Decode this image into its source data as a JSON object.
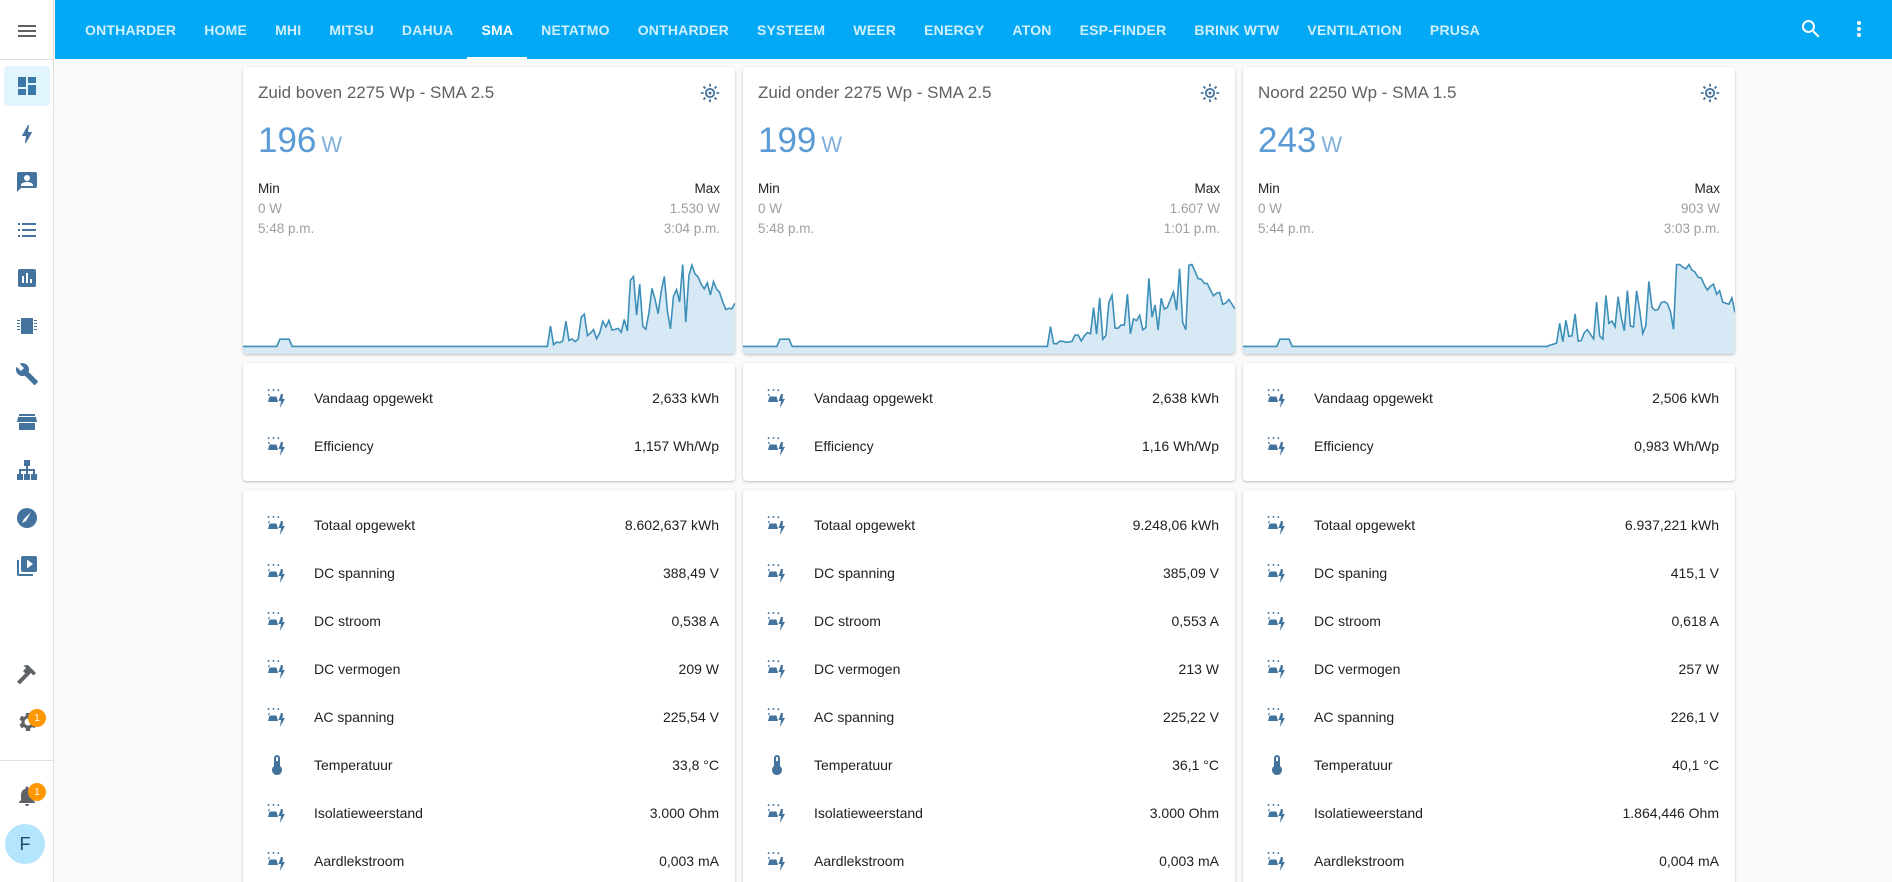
{
  "tabs": [
    "ONTHARDER",
    "HOME",
    "MHI",
    "MITSU",
    "DAHUA",
    "SMA",
    "NETATMO",
    "ONTHARDER",
    "SYSTEEM",
    "WEER",
    "ENERGY",
    "ATON",
    "ESP-FINDER",
    "BRINK WTW",
    "VENTILATION",
    "PRUSA"
  ],
  "active_tab": "SMA",
  "sidebar": {
    "settings_badge": "1",
    "notifications_badge": "1",
    "avatar_letter": "F"
  },
  "colors": {
    "header": "#03a9f4",
    "icon": "#44739e",
    "graph_line": "#3d8fb8",
    "graph_fill": "#d6e9f5",
    "badge": "#ff9800"
  },
  "panels": [
    {
      "name": "Zuid boven 2275 Wp - SMA 2.5",
      "state": "196",
      "unit": "W",
      "min_label": "Min",
      "min_value": "0 W",
      "min_time": "5:48 p.m.",
      "max_label": "Max",
      "max_value": "1.530 W",
      "max_time": "3:04 p.m.",
      "energy": [
        {
          "icon": "solar-power-icon",
          "name": "Vandaag opgewekt",
          "value": "2,633 kWh"
        },
        {
          "icon": "solar-power-icon",
          "name": "Efficiency",
          "value": "1,157 Wh/Wp"
        }
      ],
      "details": [
        {
          "icon": "solar-power-icon",
          "name": "Totaal opgewekt",
          "value": "8.602,637 kWh"
        },
        {
          "icon": "solar-power-icon",
          "name": "DC spanning",
          "value": "388,49 V"
        },
        {
          "icon": "solar-power-icon",
          "name": "DC stroom",
          "value": "0,538 A"
        },
        {
          "icon": "solar-power-icon",
          "name": "DC vermogen",
          "value": "209 W"
        },
        {
          "icon": "solar-power-icon",
          "name": "AC spanning",
          "value": "225,54 V"
        },
        {
          "icon": "thermometer-icon",
          "name": "Temperatuur",
          "value": "33,8 °C"
        },
        {
          "icon": "solar-power-icon",
          "name": "Isolatieweerstand",
          "value": "3.000 Ohm"
        },
        {
          "icon": "solar-power-icon",
          "name": "Aardlekstroom",
          "value": "0,003 mA"
        }
      ]
    },
    {
      "name": "Zuid onder 2275 Wp - SMA 2.5",
      "state": "199",
      "unit": "W",
      "min_label": "Min",
      "min_value": "0 W",
      "min_time": "5:48 p.m.",
      "max_label": "Max",
      "max_value": "1.607 W",
      "max_time": "1:01 p.m.",
      "energy": [
        {
          "icon": "solar-power-icon",
          "name": "Vandaag opgewekt",
          "value": "2,638 kWh"
        },
        {
          "icon": "solar-power-icon",
          "name": "Efficiency",
          "value": "1,16 Wh/Wp"
        }
      ],
      "details": [
        {
          "icon": "solar-power-icon",
          "name": "Totaal opgewekt",
          "value": "9.248,06 kWh"
        },
        {
          "icon": "solar-power-icon",
          "name": "DC spanning",
          "value": "385,09 V"
        },
        {
          "icon": "solar-power-icon",
          "name": "DC stroom",
          "value": "0,553 A"
        },
        {
          "icon": "solar-power-icon",
          "name": "DC vermogen",
          "value": "213 W"
        },
        {
          "icon": "solar-power-icon",
          "name": "AC spanning",
          "value": "225,22 V"
        },
        {
          "icon": "thermometer-icon",
          "name": "Temperatuur",
          "value": "36,1 °C"
        },
        {
          "icon": "solar-power-icon",
          "name": "Isolatieweerstand",
          "value": "3.000 Ohm"
        },
        {
          "icon": "solar-power-icon",
          "name": "Aardlekstroom",
          "value": "0,003 mA"
        }
      ]
    },
    {
      "name": "Noord 2250 Wp - SMA 1.5",
      "state": "243",
      "unit": "W",
      "min_label": "Min",
      "min_value": "0 W",
      "min_time": "5:44 p.m.",
      "max_label": "Max",
      "max_value": "903 W",
      "max_time": "3:03 p.m.",
      "energy": [
        {
          "icon": "solar-power-icon",
          "name": "Vandaag opgewekt",
          "value": "2,506 kWh"
        },
        {
          "icon": "solar-power-icon",
          "name": "Efficiency",
          "value": "0,983 Wh/Wp"
        }
      ],
      "details": [
        {
          "icon": "solar-power-icon",
          "name": "Totaal opgewekt",
          "value": "6.937,221 kWh"
        },
        {
          "icon": "solar-power-icon",
          "name": "DC spaning",
          "value": "415,1 V"
        },
        {
          "icon": "solar-power-icon",
          "name": "DC stroom",
          "value": "0,618 A"
        },
        {
          "icon": "solar-power-icon",
          "name": "DC vermogen",
          "value": "257 W"
        },
        {
          "icon": "solar-power-icon",
          "name": "AC spanning",
          "value": "226,1 V"
        },
        {
          "icon": "thermometer-icon",
          "name": "Temperatuur",
          "value": "40,1 °C"
        },
        {
          "icon": "solar-power-icon",
          "name": "Isolatieweerstand",
          "value": "1.864,446 Ohm"
        },
        {
          "icon": "solar-power-icon",
          "name": "Aardlekstroom",
          "value": "0,004 mA"
        }
      ]
    }
  ]
}
